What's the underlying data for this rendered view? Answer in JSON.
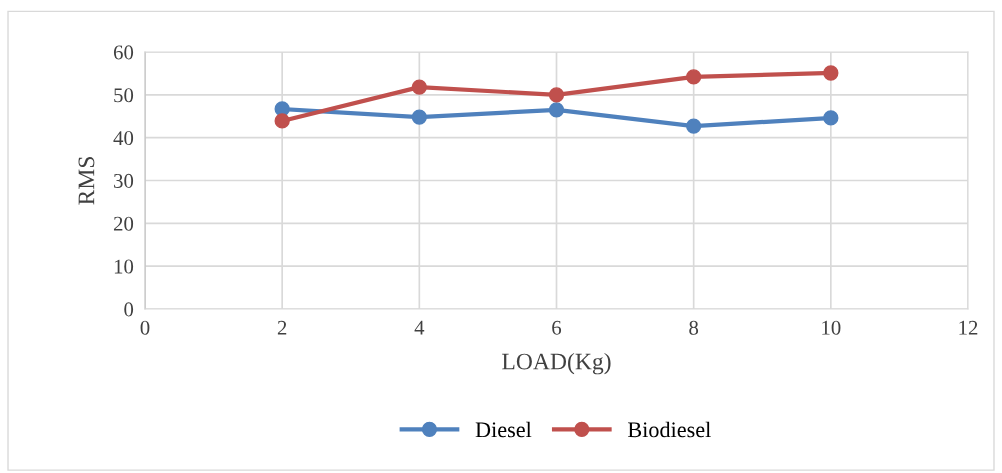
{
  "chart_data": {
    "type": "line",
    "xlabel": "LOAD(Kg)",
    "ylabel": "RMS",
    "x": [
      2,
      4,
      6,
      8,
      10
    ],
    "series": [
      {
        "name": "Diesel",
        "color": "#4f81bd",
        "values": [
          46.7,
          44.8,
          46.5,
          42.7,
          44.6
        ]
      },
      {
        "name": "Biodiesel",
        "color": "#c0504d",
        "values": [
          43.9,
          51.8,
          50.0,
          54.2,
          55.1
        ]
      }
    ],
    "xlim": [
      0,
      12
    ],
    "xticks": [
      0,
      2,
      4,
      6,
      8,
      10,
      12
    ],
    "ylim": [
      0,
      60
    ],
    "yticks": [
      0,
      10,
      20,
      30,
      40,
      50,
      60
    ],
    "grid": true,
    "legend": "bottom",
    "marker": "circle",
    "line_style": "solid"
  }
}
